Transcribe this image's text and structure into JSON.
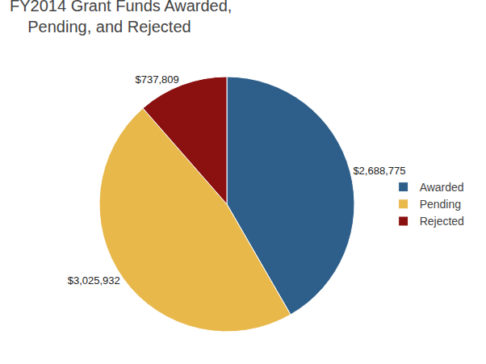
{
  "chart_data": {
    "type": "pie",
    "title": "FY2014 Grant Funds Awarded,\n    Pending, and Rejected",
    "categories": [
      "Awarded",
      "Pending",
      "Rejected"
    ],
    "values": [
      2688775,
      3025932,
      737809
    ],
    "value_labels": [
      "$2,688,775",
      "$3,025,932",
      "$737,809"
    ],
    "colors": [
      "#2E5F8A",
      "#E8B84B",
      "#8B1010"
    ],
    "legend": "right"
  }
}
